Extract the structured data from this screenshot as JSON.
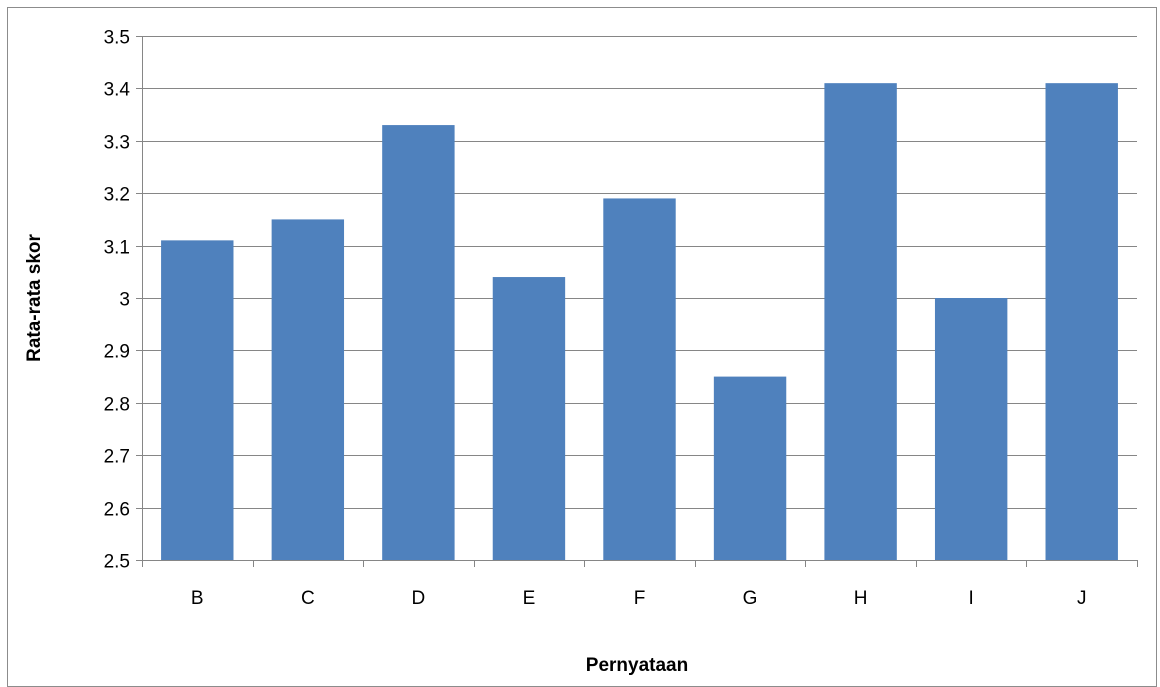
{
  "chart_data": {
    "type": "bar",
    "title": "",
    "xlabel": "Pernyataan",
    "ylabel": "Rata-rata skor",
    "categories": [
      "B",
      "C",
      "D",
      "E",
      "F",
      "G",
      "H",
      "I",
      "J"
    ],
    "values": [
      3.11,
      3.15,
      3.33,
      3.04,
      3.19,
      2.85,
      3.41,
      3.0,
      3.41
    ],
    "ylim": [
      2.5,
      3.5
    ],
    "yticks": [
      2.5,
      2.6,
      2.7,
      2.8,
      2.9,
      3,
      3.1,
      3.2,
      3.3,
      3.4,
      3.5
    ],
    "ytick_labels": [
      "2.5",
      "2.6",
      "2.7",
      "2.8",
      "2.9",
      "3",
      "3.1",
      "3.2",
      "3.3",
      "3.4",
      "3.5"
    ],
    "grid": true,
    "legend": "none",
    "bar_color": "#4f81bd",
    "grid_color": "#868686"
  }
}
